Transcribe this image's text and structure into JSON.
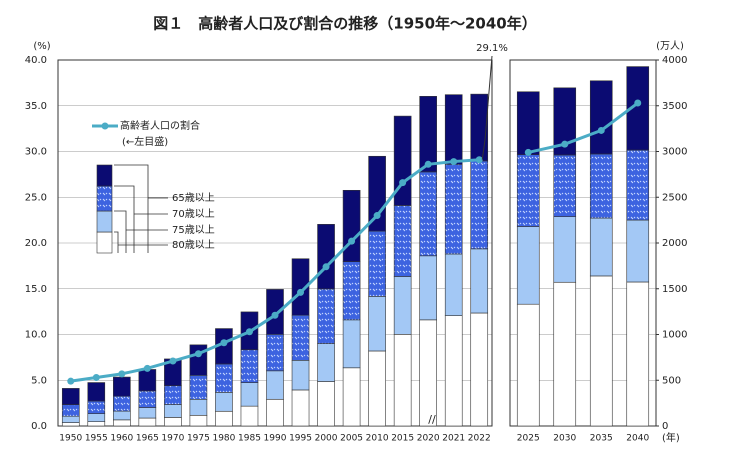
{
  "chart_data": {
    "type": "bar-line",
    "title": "図１　高齢者人口及び割合の推移（1950年～2040年）",
    "y_unit": "(%)",
    "y2_unit": "(万人)",
    "x_unit": "(年)",
    "annotation": "29.1%",
    "line_note": "(←左目盛)",
    "categories": [
      "1950",
      "1955",
      "1960",
      "1965",
      "1970",
      "1975",
      "1980",
      "1985",
      "1990",
      "1995",
      "2000",
      "2005",
      "2010",
      "2015",
      "2020",
      "2021",
      "2022",
      "2025",
      "2030",
      "2035",
      "2040"
    ],
    "series": [
      {
        "name": "80歳以上",
        "color": "#ffffff",
        "axis": "y2",
        "values": [
          37,
          47,
          67,
          87,
          94,
          117,
          161,
          217,
          292,
          394,
          486,
          636,
          820,
          1002,
          1160,
          1206,
          1235,
          1331,
          1571,
          1640,
          1574
        ]
      },
      {
        "name": "75歳以上",
        "color": "#a3c8f5",
        "axis": "y2",
        "values": [
          70,
          88,
          96,
          115,
          141,
          175,
          207,
          257,
          311,
          324,
          415,
          524,
          597,
          632,
          700,
          674,
          701,
          849,
          717,
          633,
          677
        ]
      },
      {
        "name": "70歳以上",
        "color": "#3d63e0",
        "axis": "y2",
        "values": [
          126,
          138,
          163,
          181,
          205,
          262,
          310,
          359,
          399,
          493,
          597,
          636,
          713,
          776,
          917,
          980,
          961,
          785,
          674,
          700,
          765
        ]
      },
      {
        "name": "65歳以上",
        "color": "#0b0b72",
        "axis": "y2",
        "values": [
          178,
          202,
          209,
          235,
          293,
          333,
          387,
          414,
          491,
          617,
          706,
          780,
          818,
          977,
          826,
          761,
          730,
          688,
          734,
          800,
          912
        ]
      },
      {
        "name": "高齢者人口の割合",
        "color": "#4bacc6",
        "type": "line",
        "values": [
          4.9,
          5.3,
          5.7,
          6.3,
          7.1,
          7.9,
          9.1,
          10.3,
          12.1,
          14.6,
          17.4,
          20.2,
          23.0,
          26.6,
          28.6,
          28.9,
          29.1,
          29.9,
          30.8,
          32.3,
          35.3
        ]
      }
    ],
    "ylim": [
      0,
      40
    ],
    "yticks": [
      {
        "value": 0,
        "label": "0.0"
      },
      {
        "value": 5,
        "label": "5.0"
      },
      {
        "value": 10,
        "label": "10.0"
      },
      {
        "value": 15,
        "label": "15.0"
      },
      {
        "value": 20,
        "label": "20.0"
      },
      {
        "value": 25,
        "label": "25.0"
      },
      {
        "value": 30,
        "label": "30.0"
      },
      {
        "value": 35,
        "label": "35.0"
      },
      {
        "value": 40,
        "label": "40.0"
      }
    ],
    "y2lim": [
      0,
      4000
    ],
    "y2ticks": [
      0,
      500,
      1000,
      1500,
      2000,
      2500,
      3000,
      3500,
      4000
    ],
    "grid": true
  }
}
